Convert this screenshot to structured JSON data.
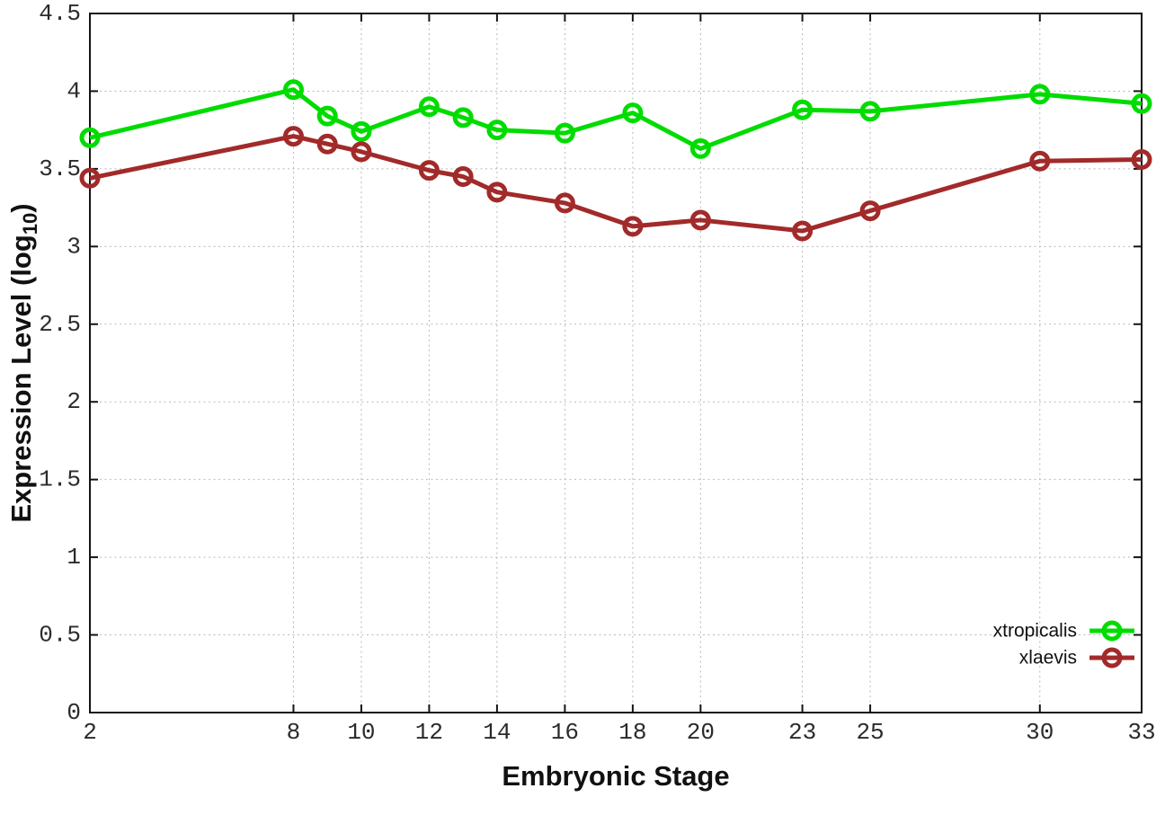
{
  "figure": {
    "background": "#ffffff"
  },
  "style": {
    "grid_color": "#b9b9b9",
    "axis_color": "#141414",
    "tick_text_color": "#2b2b2b",
    "title_text_color": "#111111"
  },
  "chart_data": {
    "type": "line",
    "title": "",
    "xlabel": "Embryonic Stage",
    "ylabel": {
      "main": "Expression Level (log",
      "sub": "10",
      "end": ")"
    },
    "ylabel_plain": "Expression Level (log10)",
    "xlim": [
      2,
      33
    ],
    "ylim": [
      0,
      4.5
    ],
    "x_ticks": [
      2,
      8,
      10,
      12,
      14,
      16,
      18,
      20,
      23,
      25,
      30,
      33
    ],
    "y_ticks": [
      0,
      0.5,
      1,
      1.5,
      2,
      2.5,
      3,
      3.5,
      4,
      4.5
    ],
    "grid": true,
    "grid_style": "dotted",
    "legend_position": "inside-bottom-right",
    "x": [
      2,
      8,
      9,
      10,
      12,
      13,
      14,
      16,
      18,
      20,
      23,
      25,
      30,
      33
    ],
    "series": [
      {
        "name": "xtropicalis",
        "color": "#00dc00",
        "marker": "open-circle",
        "values": [
          3.7,
          4.01,
          3.84,
          3.74,
          3.9,
          3.83,
          3.75,
          3.73,
          3.86,
          3.63,
          3.88,
          3.87,
          3.98,
          3.92
        ]
      },
      {
        "name": "xlaevis",
        "color": "#a22a2a",
        "marker": "open-circle",
        "values": [
          3.44,
          3.71,
          3.66,
          3.61,
          3.49,
          3.45,
          3.35,
          3.28,
          3.13,
          3.17,
          3.1,
          3.23,
          3.55,
          3.56
        ]
      }
    ]
  }
}
